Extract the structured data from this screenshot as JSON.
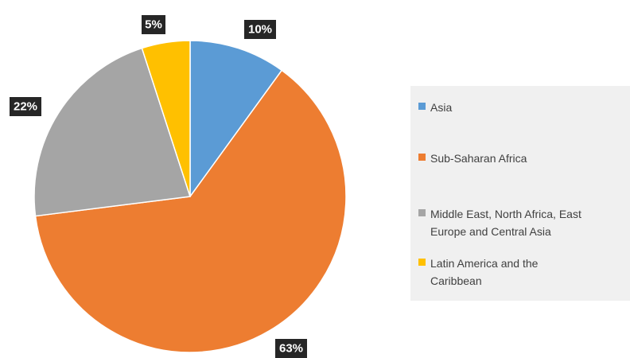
{
  "chart_data": {
    "type": "pie",
    "title": "",
    "slices": [
      {
        "label": "Asia",
        "value": 10,
        "value_label": "10%",
        "color": "#5b9bd5"
      },
      {
        "label": "Sub-Saharan Africa",
        "value": 63,
        "value_label": "63%",
        "color": "#ed7d31"
      },
      {
        "label": "Middle East, North Africa, East Europe and Central Asia",
        "value": 22,
        "value_label": "22%",
        "color": "#a5a5a5"
      },
      {
        "label": "Latin America and the Caribbean",
        "value": 5,
        "value_label": "5%",
        "color": "#ffc000"
      }
    ],
    "start_angle_deg": 0,
    "direction": "clockwise",
    "legend_placement": "right"
  },
  "legend": {
    "items": [
      {
        "label": "Asia",
        "color": "#5b9bd5"
      },
      {
        "label": "Sub-Saharan Africa",
        "color": "#ed7d31"
      },
      {
        "label": "Middle East, North Africa, East Europe and Central Asia",
        "color": "#a5a5a5"
      },
      {
        "label": "Latin America and the Caribbean",
        "color": "#ffc000"
      }
    ]
  }
}
